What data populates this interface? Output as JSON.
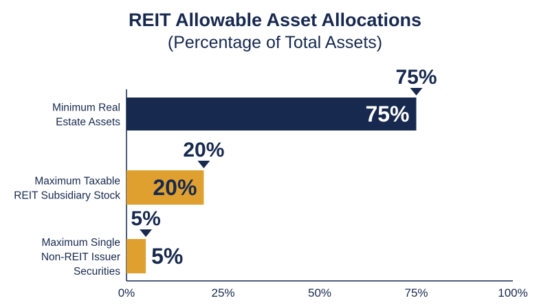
{
  "chart_data": {
    "type": "bar",
    "orientation": "horizontal",
    "title": "REIT Allowable Asset Allocations",
    "subtitle": "(Percentage of Total Assets)",
    "categories": [
      [
        "Minimum Real",
        "Estate Assets"
      ],
      [
        "Maximum Taxable",
        "REIT Subsidiary Stock"
      ],
      [
        "Maximum Single",
        "Non-REIT Issuer",
        "Securities"
      ]
    ],
    "values": [
      75,
      20,
      5
    ],
    "data_labels": [
      "75%",
      "20%",
      "5%"
    ],
    "callout_labels": [
      "75%",
      "20%",
      "5%"
    ],
    "bar_colors": [
      "#17294f",
      "#e0a030",
      "#e0a030"
    ],
    "xlim": [
      0,
      100
    ],
    "xticks": [
      0,
      25,
      50,
      75,
      100
    ],
    "xtick_labels": [
      "0%",
      "25%",
      "50%",
      "75%",
      "100%"
    ],
    "xlabel": "",
    "ylabel": "",
    "grid": false,
    "legend": "none"
  }
}
